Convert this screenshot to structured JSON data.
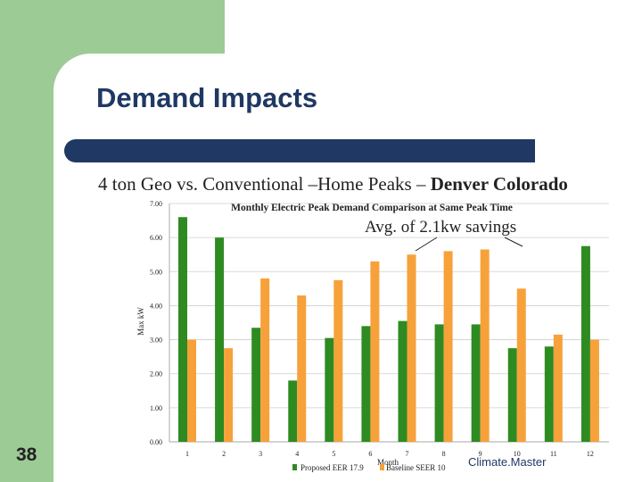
{
  "slide": {
    "title": "Demand Impacts",
    "subtitle_main": "4 ton Geo vs. Conventional –Home Peaks – ",
    "subtitle_bold": "Denver Colorado",
    "slide_number": "38",
    "brand": "Climate.Master"
  },
  "colors": {
    "proposed": "#2e8b22",
    "baseline": "#f7a13a",
    "title": "#1f3864",
    "green_panel": "#9dcb96"
  },
  "chart_data": {
    "type": "bar",
    "title": "Monthly Electric Peak Demand Comparison at Same Peak Time",
    "xlabel": "Month",
    "ylabel": "Max kW",
    "ylim": [
      0,
      7
    ],
    "yticks": [
      "0.00",
      "1.00",
      "2.00",
      "3.00",
      "4.00",
      "5.00",
      "6.00",
      "7.00"
    ],
    "categories": [
      "1",
      "2",
      "3",
      "4",
      "5",
      "6",
      "7",
      "8",
      "9",
      "10",
      "11",
      "12"
    ],
    "series": [
      {
        "name": "Proposed EER 17.9",
        "values": [
          6.6,
          6.0,
          3.35,
          1.8,
          3.05,
          3.4,
          3.55,
          3.45,
          3.45,
          2.75,
          2.8,
          5.75
        ]
      },
      {
        "name": "Baseline SEER 10",
        "values": [
          3.0,
          2.75,
          4.8,
          4.3,
          4.75,
          5.3,
          5.5,
          5.6,
          5.65,
          4.5,
          3.15,
          3.0
        ]
      }
    ],
    "legend": "bottom",
    "annotation": "Avg. of 2.1kw savings"
  }
}
